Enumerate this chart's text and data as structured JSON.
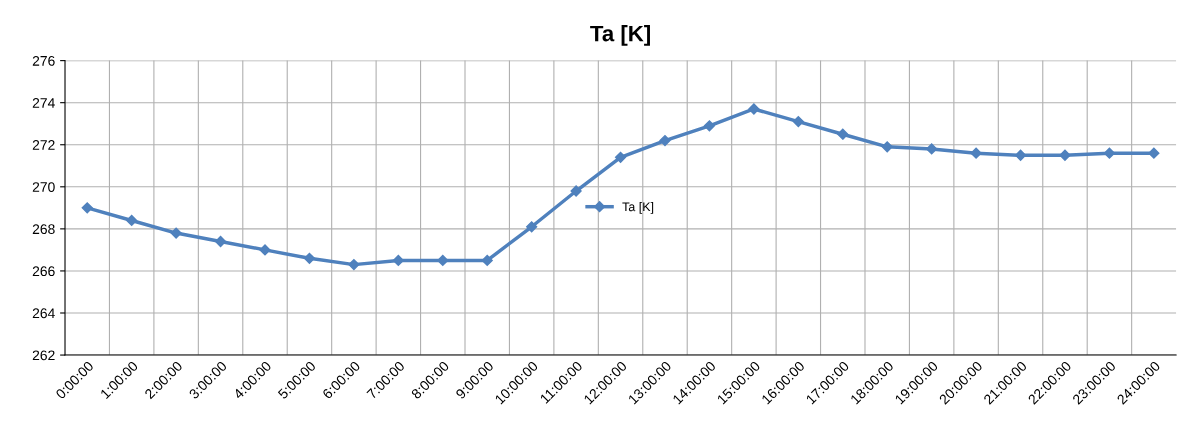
{
  "chart_data": {
    "type": "line",
    "title": "Ta [K]",
    "categories": [
      "0:00:00",
      "1:00:00",
      "2:00:00",
      "3:00:00",
      "4:00:00",
      "5:00:00",
      "6:00:00",
      "7:00:00",
      "8:00:00",
      "9:00:00",
      "10:00:00",
      "11:00:00",
      "12:00:00",
      "13:00:00",
      "14:00:00",
      "15:00:00",
      "16:00:00",
      "17:00:00",
      "18:00:00",
      "19:00:00",
      "20:00:00",
      "21:00:00",
      "22:00:00",
      "23:00:00",
      "24:00:00"
    ],
    "series": [
      {
        "name": "Ta [K]",
        "color": "#4f81bd",
        "values": [
          269.0,
          268.4,
          267.8,
          267.4,
          267.0,
          266.6,
          266.3,
          266.5,
          266.5,
          266.5,
          268.1,
          269.8,
          271.4,
          272.2,
          272.9,
          273.7,
          273.1,
          272.5,
          271.9,
          271.8,
          271.6,
          271.5,
          271.5,
          271.6,
          271.6
        ]
      }
    ],
    "ylim": [
      262,
      276
    ],
    "yticks": [
      262,
      264,
      266,
      268,
      270,
      272,
      274,
      276
    ],
    "grid": true,
    "legend": "center",
    "marker": "diamond",
    "line_style": "solid"
  }
}
